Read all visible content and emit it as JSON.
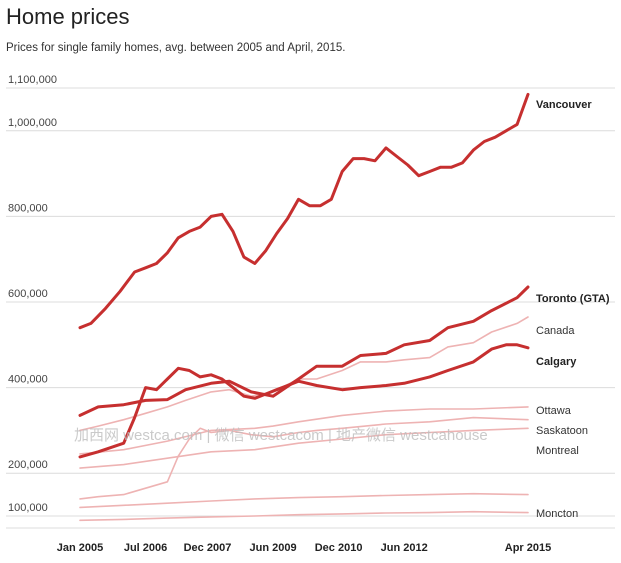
{
  "chart_data": {
    "type": "line",
    "title": "Home prices",
    "subtitle": "Prices for single family homes, avg. between 2005 and April, 2015.",
    "xlabel": "",
    "ylabel": "",
    "x_range": [
      "2005-01",
      "2015-04"
    ],
    "ylim": [
      75000,
      1120000
    ],
    "y_ticks": [
      {
        "value": 100000,
        "label": "100,000"
      },
      {
        "value": 200000,
        "label": "200,000"
      },
      {
        "value": 400000,
        "label": "400,000"
      },
      {
        "value": 600000,
        "label": "600,000"
      },
      {
        "value": 800000,
        "label": "800,000"
      },
      {
        "value": 1000000,
        "label": "1,000,000"
      },
      {
        "value": 1100000,
        "label": "1,100,000"
      }
    ],
    "x_ticks": [
      {
        "value": "2005-01",
        "label": "Jan 2005"
      },
      {
        "value": "2006-07",
        "label": "Jul 2006"
      },
      {
        "value": "2007-12",
        "label": "Dec 2007"
      },
      {
        "value": "2009-06",
        "label": "Jun 2009"
      },
      {
        "value": "2010-12",
        "label": "Dec 2010"
      },
      {
        "value": "2012-06",
        "label": "Jun 2012"
      },
      {
        "value": "2015-04",
        "label": "Apr 2015"
      }
    ],
    "grid": true,
    "series": [
      {
        "name": "Vancouver",
        "emphasis": "bold",
        "color": "#c62f2f",
        "x": [
          "2005-01",
          "2005-04",
          "2005-08",
          "2005-12",
          "2006-04",
          "2006-07",
          "2006-10",
          "2007-01",
          "2007-04",
          "2007-07",
          "2007-10",
          "2008-01",
          "2008-04",
          "2008-07",
          "2008-10",
          "2009-01",
          "2009-04",
          "2009-07",
          "2009-10",
          "2010-01",
          "2010-04",
          "2010-07",
          "2010-10",
          "2011-01",
          "2011-04",
          "2011-07",
          "2011-10",
          "2012-01",
          "2012-04",
          "2012-07",
          "2012-10",
          "2013-01",
          "2013-04",
          "2013-07",
          "2013-10",
          "2014-01",
          "2014-04",
          "2014-07",
          "2014-10",
          "2015-01",
          "2015-04"
        ],
        "y": [
          540000,
          550000,
          585000,
          625000,
          670000,
          680000,
          690000,
          715000,
          750000,
          765000,
          775000,
          800000,
          805000,
          765000,
          705000,
          690000,
          720000,
          760000,
          795000,
          840000,
          825000,
          825000,
          840000,
          905000,
          935000,
          935000,
          930000,
          960000,
          940000,
          920000,
          895000,
          905000,
          915000,
          915000,
          925000,
          955000,
          975000,
          985000,
          1000000,
          1015000,
          1085000
        ]
      },
      {
        "name": "Toronto (GTA)",
        "emphasis": "bold",
        "color": "#c62f2f",
        "x": [
          "2005-01",
          "2005-06",
          "2006-01",
          "2006-07",
          "2007-01",
          "2007-06",
          "2008-01",
          "2008-06",
          "2008-12",
          "2009-06",
          "2010-01",
          "2010-06",
          "2011-01",
          "2011-06",
          "2012-01",
          "2012-06",
          "2013-01",
          "2013-06",
          "2014-01",
          "2014-06",
          "2015-01",
          "2015-04"
        ],
        "y": [
          335000,
          355000,
          360000,
          370000,
          372000,
          395000,
          410000,
          415000,
          390000,
          380000,
          420000,
          450000,
          450000,
          475000,
          480000,
          500000,
          510000,
          540000,
          555000,
          580000,
          610000,
          635000
        ]
      },
      {
        "name": "Canada",
        "emphasis": "light",
        "color": "#eeb3b3",
        "x": [
          "2005-01",
          "2005-06",
          "2006-01",
          "2006-07",
          "2007-01",
          "2007-06",
          "2008-01",
          "2008-06",
          "2008-12",
          "2009-06",
          "2010-01",
          "2010-06",
          "2011-01",
          "2011-06",
          "2012-01",
          "2012-06",
          "2013-01",
          "2013-06",
          "2014-01",
          "2014-06",
          "2015-01",
          "2015-04"
        ],
        "y": [
          300000,
          310000,
          325000,
          340000,
          355000,
          370000,
          390000,
          395000,
          380000,
          390000,
          420000,
          420000,
          440000,
          460000,
          460000,
          465000,
          470000,
          495000,
          505000,
          530000,
          550000,
          565000
        ]
      },
      {
        "name": "Calgary",
        "emphasis": "bold",
        "color": "#c62f2f",
        "x": [
          "2005-01",
          "2005-06",
          "2006-01",
          "2006-04",
          "2006-07",
          "2006-10",
          "2007-01",
          "2007-04",
          "2007-07",
          "2007-10",
          "2008-01",
          "2008-04",
          "2008-07",
          "2008-10",
          "2009-01",
          "2009-04",
          "2009-07",
          "2009-10",
          "2010-01",
          "2010-06",
          "2011-01",
          "2011-06",
          "2012-01",
          "2012-06",
          "2013-01",
          "2013-06",
          "2014-01",
          "2014-06",
          "2014-10",
          "2015-01",
          "2015-04"
        ],
        "y": [
          238000,
          250000,
          270000,
          330000,
          400000,
          395000,
          420000,
          445000,
          440000,
          425000,
          430000,
          420000,
          400000,
          380000,
          375000,
          385000,
          395000,
          405000,
          415000,
          405000,
          395000,
          400000,
          405000,
          410000,
          425000,
          440000,
          460000,
          490000,
          500000,
          500000,
          493000
        ]
      },
      {
        "name": "Ottawa",
        "emphasis": "light",
        "color": "#eeb3b3",
        "x": [
          "2005-01",
          "2006-01",
          "2007-01",
          "2008-01",
          "2009-01",
          "2009-06",
          "2010-01",
          "2011-01",
          "2012-01",
          "2013-01",
          "2014-01",
          "2015-04"
        ],
        "y": [
          245000,
          255000,
          275000,
          300000,
          305000,
          310000,
          320000,
          335000,
          345000,
          350000,
          350000,
          355000
        ]
      },
      {
        "name": "Saskatoon",
        "emphasis": "light",
        "color": "#eeb3b3",
        "x": [
          "2005-01",
          "2005-06",
          "2006-01",
          "2006-07",
          "2007-01",
          "2007-04",
          "2007-07",
          "2007-10",
          "2008-01",
          "2008-06",
          "2008-12",
          "2009-06",
          "2010-01",
          "2010-06",
          "2011-01",
          "2012-01",
          "2013-01",
          "2014-01",
          "2015-04"
        ],
        "y": [
          140000,
          145000,
          150000,
          165000,
          180000,
          240000,
          280000,
          305000,
          295000,
          300000,
          290000,
          285000,
          295000,
          300000,
          305000,
          315000,
          320000,
          330000,
          325000
        ]
      },
      {
        "name": "Montreal",
        "emphasis": "light",
        "color": "#eeb3b3",
        "x": [
          "2005-01",
          "2006-01",
          "2007-01",
          "2008-01",
          "2009-01",
          "2010-01",
          "2011-01",
          "2012-01",
          "2013-01",
          "2014-01",
          "2015-04"
        ],
        "y": [
          212000,
          220000,
          235000,
          250000,
          255000,
          270000,
          280000,
          290000,
          295000,
          300000,
          305000
        ]
      },
      {
        "name": "Moncton",
        "emphasis": "light",
        "color": "#eeb3b3",
        "x": [
          "2005-01",
          "2006-01",
          "2007-01",
          "2008-01",
          "2009-01",
          "2010-01",
          "2011-01",
          "2012-01",
          "2013-01",
          "2014-01",
          "2015-04"
        ],
        "y": [
          120000,
          125000,
          130000,
          135000,
          140000,
          143000,
          145000,
          148000,
          150000,
          152000,
          150000
        ]
      },
      {
        "name": "",
        "emphasis": "light",
        "color": "#eeb3b3",
        "x": [
          "2005-01",
          "2006-01",
          "2007-01",
          "2008-01",
          "2009-01",
          "2010-01",
          "2011-01",
          "2012-01",
          "2013-01",
          "2014-01",
          "2015-04"
        ],
        "y": [
          90000,
          92000,
          95000,
          98000,
          100000,
          103000,
          105000,
          107000,
          108000,
          110000,
          108000
        ]
      }
    ]
  },
  "watermark": "加西网 westca.com | 微信 westcacom | 地产微信 westcahouse"
}
